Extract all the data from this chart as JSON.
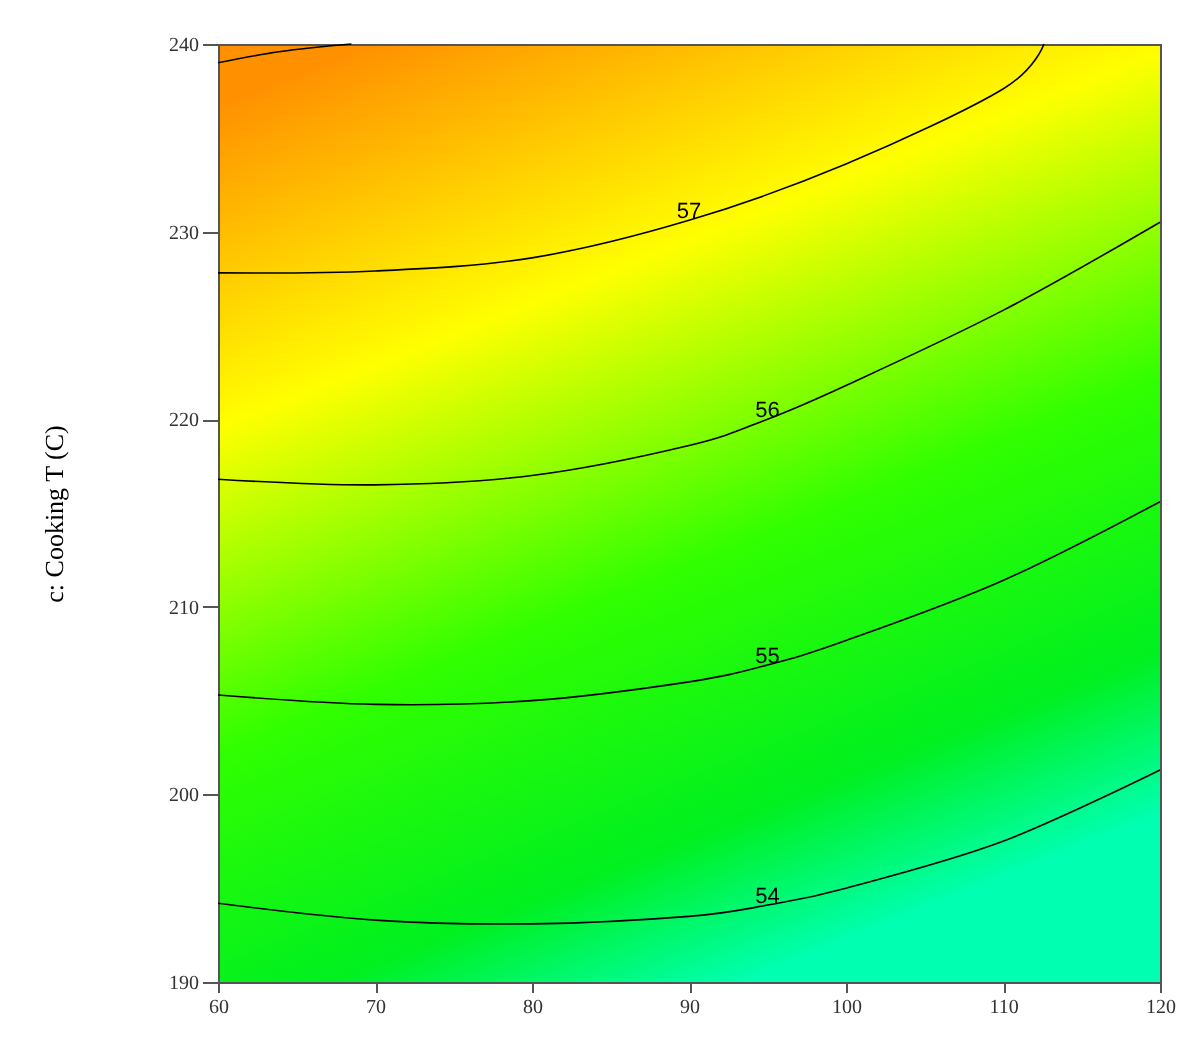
{
  "chart_data": {
    "type": "line",
    "ylabel": "c: Cooking T (C)",
    "xlim": [
      60,
      120
    ],
    "xticks": [
      60,
      70,
      80,
      90,
      100,
      110,
      120
    ],
    "ylim": [
      190,
      240
    ],
    "yticks": [
      190,
      200,
      210,
      220,
      230,
      240
    ],
    "grid": false,
    "legend": false,
    "marker": "none",
    "line_style": "solid",
    "series": [
      {
        "color": "#000000",
        "x": [
          60,
          64,
          68.5
        ],
        "values": [
          239,
          239.6,
          240
        ]
      },
      {
        "name": "57",
        "color": "#000000",
        "x": [
          60,
          70,
          80,
          90,
          100,
          110,
          112.6
        ],
        "values": [
          227.8,
          227.9,
          228.6,
          230.6,
          233.6,
          237.6,
          240
        ]
      },
      {
        "name": "56",
        "color": "#000000",
        "x": [
          60,
          70,
          80,
          90,
          95,
          100,
          110,
          120
        ],
        "values": [
          216.8,
          216.5,
          217,
          218.6,
          220,
          221.8,
          225.8,
          230.5
        ]
      },
      {
        "name": "55",
        "color": "#000000",
        "x": [
          60,
          70,
          80,
          90,
          95,
          100,
          110,
          120
        ],
        "values": [
          205.3,
          204.8,
          205,
          206,
          206.9,
          208.2,
          211.4,
          215.6
        ]
      },
      {
        "name": "54",
        "color": "#000000",
        "x": [
          60,
          70,
          80,
          90,
          95,
          100,
          110,
          120
        ],
        "values": [
          194.2,
          193.3,
          193.1,
          193.5,
          194.1,
          195,
          197.5,
          201.3
        ]
      }
    ]
  }
}
